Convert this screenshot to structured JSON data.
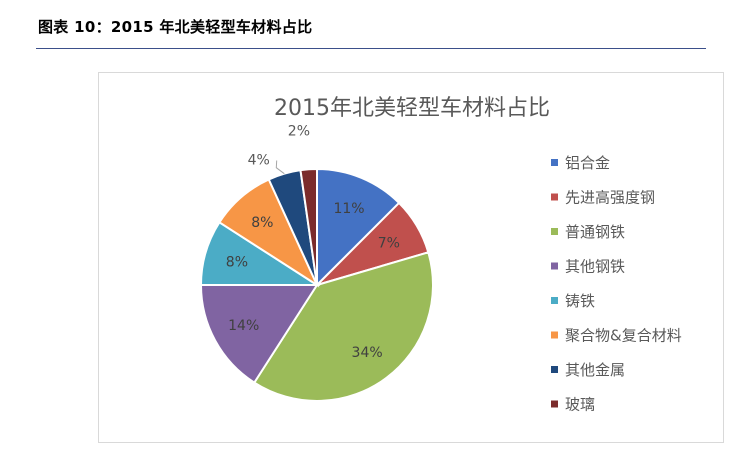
{
  "figure": {
    "caption": "图表 10：2015 年北美轻型车材料占比"
  },
  "chart_data": {
    "type": "pie",
    "title": "2015年北美轻型车材料占比",
    "categories": [
      "铝合金",
      "先进高强度钢",
      "普通钢铁",
      "其他钢铁",
      "铸铁",
      "聚合物&复合材料",
      "其他金属",
      "玻璃"
    ],
    "values": [
      11,
      7,
      34,
      14,
      8,
      8,
      4,
      2
    ],
    "data_labels": [
      "11%",
      "7%",
      "34%",
      "14%",
      "8%",
      "8%",
      "4%",
      "2%"
    ],
    "colors": [
      "#4472C4",
      "#C0504D",
      "#9BBB59",
      "#8064A2",
      "#4BACC6",
      "#F79646",
      "#1F497D",
      "#7B2C2C"
    ],
    "label_colors": [
      "#404040",
      "#404040",
      "#404040",
      "#404040",
      "#404040",
      "#404040",
      "#595959",
      "#595959"
    ],
    "outer_label_slices": [
      6,
      7
    ],
    "legend_position": "right"
  }
}
